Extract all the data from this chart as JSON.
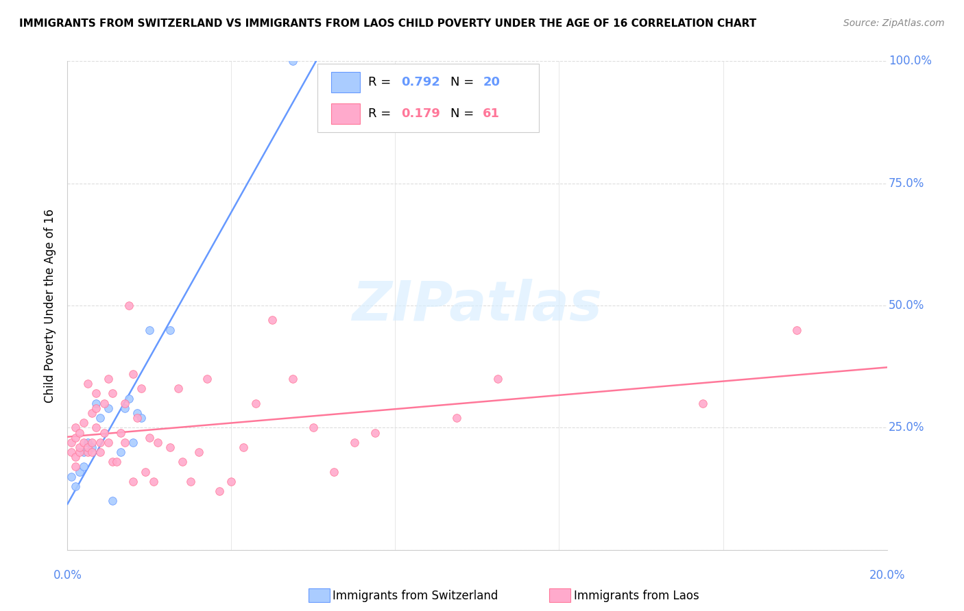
{
  "title": "IMMIGRANTS FROM SWITZERLAND VS IMMIGRANTS FROM LAOS CHILD POVERTY UNDER THE AGE OF 16 CORRELATION CHART",
  "source": "Source: ZipAtlas.com",
  "ylabel": "Child Poverty Under the Age of 16",
  "xmin": 0.0,
  "xmax": 0.2,
  "ymin": 0.0,
  "ymax": 1.0,
  "yticks": [
    0.0,
    0.25,
    0.5,
    0.75,
    1.0
  ],
  "ytick_labels": [
    "",
    "25.0%",
    "50.0%",
    "75.0%",
    "100.0%"
  ],
  "watermark": "ZIPatlas",
  "color_switzerland": "#AACCFF",
  "color_laos": "#FFAACC",
  "trendline_color_switzerland": "#6699FF",
  "trendline_color_laos": "#FF7799",
  "label_color": "#5588EE",
  "switzerland_x": [
    0.001,
    0.002,
    0.003,
    0.004,
    0.004,
    0.005,
    0.006,
    0.007,
    0.008,
    0.01,
    0.011,
    0.013,
    0.014,
    0.015,
    0.016,
    0.017,
    0.018,
    0.02,
    0.025,
    0.055
  ],
  "switzerland_y": [
    0.15,
    0.13,
    0.16,
    0.17,
    0.2,
    0.22,
    0.21,
    0.3,
    0.27,
    0.29,
    0.1,
    0.2,
    0.29,
    0.31,
    0.22,
    0.28,
    0.27,
    0.45,
    0.45,
    1.0
  ],
  "laos_x": [
    0.001,
    0.001,
    0.002,
    0.002,
    0.002,
    0.002,
    0.003,
    0.003,
    0.003,
    0.004,
    0.004,
    0.005,
    0.005,
    0.005,
    0.006,
    0.006,
    0.006,
    0.007,
    0.007,
    0.007,
    0.008,
    0.008,
    0.009,
    0.009,
    0.01,
    0.01,
    0.011,
    0.011,
    0.012,
    0.013,
    0.014,
    0.014,
    0.015,
    0.016,
    0.016,
    0.017,
    0.018,
    0.019,
    0.02,
    0.021,
    0.022,
    0.025,
    0.027,
    0.028,
    0.03,
    0.032,
    0.034,
    0.037,
    0.04,
    0.043,
    0.046,
    0.05,
    0.055,
    0.06,
    0.065,
    0.07,
    0.075,
    0.095,
    0.105,
    0.155,
    0.178
  ],
  "laos_y": [
    0.2,
    0.22,
    0.17,
    0.19,
    0.23,
    0.25,
    0.2,
    0.21,
    0.24,
    0.22,
    0.26,
    0.2,
    0.21,
    0.34,
    0.2,
    0.22,
    0.28,
    0.25,
    0.29,
    0.32,
    0.2,
    0.22,
    0.24,
    0.3,
    0.22,
    0.35,
    0.18,
    0.32,
    0.18,
    0.24,
    0.22,
    0.3,
    0.5,
    0.36,
    0.14,
    0.27,
    0.33,
    0.16,
    0.23,
    0.14,
    0.22,
    0.21,
    0.33,
    0.18,
    0.14,
    0.2,
    0.35,
    0.12,
    0.14,
    0.21,
    0.3,
    0.47,
    0.35,
    0.25,
    0.16,
    0.22,
    0.24,
    0.27,
    0.35,
    0.3,
    0.45
  ],
  "grid_color": "#DDDDDD",
  "spine_color": "#CCCCCC",
  "marker_size": 70
}
